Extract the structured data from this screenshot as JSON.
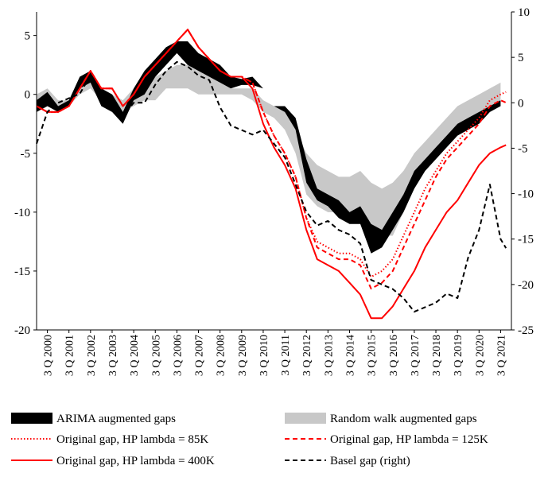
{
  "chart_data": {
    "type": "area",
    "title": "",
    "left_axis": {
      "ylim": [
        -20,
        7
      ],
      "ticks": [
        -20,
        -15,
        -10,
        -5,
        0,
        5
      ],
      "label": ""
    },
    "right_axis": {
      "ylim": [
        -25,
        10
      ],
      "ticks": [
        -25,
        -20,
        -15,
        -10,
        -5,
        0,
        5,
        10
      ],
      "label": ""
    },
    "x_axis": {
      "range": [
        "2000Q1",
        "2021Q4"
      ],
      "tick_labels": [
        "3 Q 2000",
        "3 Q 2001",
        "3 Q 2002",
        "3 Q 2003",
        "3 Q 2004",
        "3 Q 2005",
        "3 Q 2006",
        "3 Q 2007",
        "3 Q 2008",
        "3 Q 2009",
        "3 Q 2010",
        "3 Q 2011",
        "3 Q 2012",
        "3 Q 2013",
        "3 Q 2014",
        "3 Q 2015",
        "3 Q 2016",
        "3 Q 2017",
        "3 Q 2018",
        "3 Q 2019",
        "3 Q 2020",
        "3 Q 2021"
      ],
      "tick_years": [
        2000,
        2001,
        2002,
        2003,
        2004,
        2005,
        2006,
        2007,
        2008,
        2009,
        2010,
        2011,
        2012,
        2013,
        2014,
        2015,
        2016,
        2017,
        2018,
        2019,
        2020,
        2021
      ]
    },
    "legend_position": "bottom",
    "series": [
      {
        "name": "ARIMA augmented gaps",
        "kind": "band",
        "axis": "left",
        "color": "#000000",
        "x": [
          2000.0,
          2000.5,
          2001.0,
          2001.5,
          2002.0,
          2002.5,
          2003.0,
          2003.5,
          2004.0,
          2004.5,
          2005.0,
          2005.5,
          2006.0,
          2006.5,
          2007.0,
          2007.5,
          2008.0,
          2008.5,
          2009.0,
          2009.5,
          2010.0,
          2010.5,
          2011.0,
          2011.5,
          2012.0,
          2012.5,
          2013.0,
          2013.5,
          2014.0,
          2014.5,
          2015.0,
          2015.5,
          2016.0,
          2016.5,
          2017.0,
          2017.5,
          2018.0,
          2018.5,
          2019.0,
          2019.5,
          2020.0,
          2020.5,
          2021.0,
          2021.5
        ],
        "low": [
          -1.5,
          -1.0,
          -1.5,
          -1.0,
          0.5,
          1.0,
          -1.0,
          -1.5,
          -2.5,
          -0.5,
          0.0,
          1.5,
          2.5,
          3.5,
          2.5,
          2.0,
          1.5,
          1.0,
          0.5,
          0.8,
          0.8,
          0.5,
          -1.0,
          -1.5,
          -3.0,
          -7.5,
          -9.0,
          -9.5,
          -10.5,
          -11.0,
          -11.0,
          -13.5,
          -13.0,
          -11.5,
          -10.0,
          -8.0,
          -6.5,
          -5.5,
          -4.5,
          -3.5,
          -3.0,
          -2.5,
          -1.5,
          -1.0
        ],
        "high": [
          -0.5,
          0.2,
          -1.0,
          -0.5,
          1.5,
          2.0,
          0.5,
          0.0,
          -1.5,
          0.5,
          2.0,
          3.0,
          4.0,
          4.5,
          4.5,
          3.5,
          3.0,
          2.5,
          1.5,
          1.3,
          1.5,
          0.5,
          -1.0,
          -1.0,
          -2.0,
          -5.5,
          -8.0,
          -8.5,
          -9.0,
          -10.0,
          -9.5,
          -11.0,
          -11.5,
          -10.0,
          -8.5,
          -6.5,
          -5.5,
          -4.5,
          -3.5,
          -2.5,
          -2.0,
          -1.5,
          -1.0,
          -0.5
        ]
      },
      {
        "name": "Random walk augmented gaps",
        "kind": "band",
        "axis": "left",
        "color": "#c8c8c8",
        "x": [
          2000.0,
          2000.5,
          2001.0,
          2001.5,
          2002.0,
          2002.5,
          2003.0,
          2003.5,
          2004.0,
          2004.5,
          2005.0,
          2005.5,
          2006.0,
          2006.5,
          2007.0,
          2007.5,
          2008.0,
          2008.5,
          2009.0,
          2009.5,
          2010.0,
          2010.5,
          2011.0,
          2011.5,
          2012.0,
          2012.5,
          2013.0,
          2013.5,
          2014.0,
          2014.5,
          2015.0,
          2015.5,
          2016.0,
          2016.5,
          2017.0,
          2017.5,
          2018.0,
          2018.5,
          2019.0,
          2019.5,
          2020.0,
          2020.5,
          2021.0,
          2021.5
        ],
        "low": [
          -1.5,
          -1.0,
          -1.5,
          -1.0,
          0.0,
          0.5,
          -0.5,
          -1.0,
          -1.5,
          -1.0,
          -0.5,
          -0.5,
          0.5,
          0.5,
          0.5,
          0.0,
          0.0,
          0.0,
          0.0,
          0.0,
          -0.5,
          -1.5,
          -2.0,
          -3.0,
          -5.0,
          -8.5,
          -9.5,
          -10.0,
          -10.0,
          -10.0,
          -10.0,
          -11.0,
          -12.0,
          -12.0,
          -10.0,
          -8.0,
          -6.5,
          -5.0,
          -4.0,
          -3.0,
          -2.5,
          -1.5,
          -1.0,
          -0.5
        ],
        "high": [
          0.0,
          0.5,
          -0.5,
          -0.5,
          0.5,
          1.0,
          0.5,
          0.0,
          -0.5,
          0.5,
          1.0,
          1.5,
          2.0,
          2.5,
          2.5,
          2.5,
          2.0,
          1.0,
          0.5,
          0.5,
          0.5,
          -0.5,
          -1.0,
          -1.5,
          -3.0,
          -5.0,
          -6.0,
          -6.5,
          -7.0,
          -7.0,
          -6.5,
          -7.5,
          -8.0,
          -7.5,
          -6.5,
          -5.0,
          -4.0,
          -3.0,
          -2.0,
          -1.0,
          -0.5,
          0.0,
          0.5,
          1.0
        ]
      },
      {
        "name": "Original gap, HP lambda = 85K",
        "kind": "line",
        "axis": "left",
        "color": "#ff0000",
        "dash": "dotted",
        "x": [
          2000.0,
          2000.5,
          2001.0,
          2001.5,
          2002.0,
          2002.5,
          2003.0,
          2003.5,
          2004.0,
          2004.5,
          2005.0,
          2005.5,
          2006.0,
          2006.5,
          2007.0,
          2007.5,
          2008.0,
          2008.5,
          2009.0,
          2009.5,
          2010.0,
          2010.5,
          2011.0,
          2011.5,
          2012.0,
          2012.5,
          2013.0,
          2013.5,
          2014.0,
          2014.5,
          2015.0,
          2015.5,
          2016.0,
          2016.5,
          2017.0,
          2017.5,
          2018.0,
          2018.5,
          2019.0,
          2019.5,
          2020.0,
          2020.5,
          2021.0,
          2021.5,
          2021.75
        ],
        "values": [
          -1.0,
          -1.5,
          -1.5,
          -1.0,
          0.5,
          2.0,
          0.5,
          0.5,
          -1.0,
          0.0,
          1.5,
          2.5,
          3.5,
          4.5,
          5.5,
          4.0,
          3.0,
          2.0,
          1.5,
          1.5,
          1.0,
          -1.5,
          -3.5,
          -5.0,
          -7.0,
          -10.5,
          -12.5,
          -13.0,
          -13.5,
          -13.5,
          -14.0,
          -15.5,
          -15.0,
          -14.0,
          -12.0,
          -10.0,
          -8.0,
          -6.5,
          -5.0,
          -4.0,
          -3.0,
          -2.0,
          -0.5,
          0.0,
          0.2
        ]
      },
      {
        "name": "Original gap, HP lambda = 125K",
        "kind": "line",
        "axis": "left",
        "color": "#ff0000",
        "dash": "dashed",
        "x": [
          2000.0,
          2000.5,
          2001.0,
          2001.5,
          2002.0,
          2002.5,
          2003.0,
          2003.5,
          2004.0,
          2004.5,
          2005.0,
          2005.5,
          2006.0,
          2006.5,
          2007.0,
          2007.5,
          2008.0,
          2008.5,
          2009.0,
          2009.5,
          2010.0,
          2010.5,
          2011.0,
          2011.5,
          2012.0,
          2012.5,
          2013.0,
          2013.5,
          2014.0,
          2014.5,
          2015.0,
          2015.5,
          2016.0,
          2016.5,
          2017.0,
          2017.5,
          2018.0,
          2018.5,
          2019.0,
          2019.5,
          2020.0,
          2020.5,
          2021.0,
          2021.5,
          2021.75
        ],
        "values": [
          -1.0,
          -1.5,
          -1.5,
          -1.0,
          0.5,
          2.0,
          0.5,
          0.5,
          -1.0,
          0.0,
          1.5,
          2.5,
          3.5,
          4.5,
          5.5,
          4.0,
          3.0,
          2.0,
          1.5,
          1.5,
          1.0,
          -1.5,
          -3.5,
          -5.0,
          -7.0,
          -10.5,
          -13.0,
          -13.5,
          -14.0,
          -14.0,
          -14.5,
          -16.5,
          -16.0,
          -15.0,
          -13.0,
          -11.0,
          -9.0,
          -7.0,
          -5.5,
          -4.5,
          -3.5,
          -2.5,
          -1.0,
          -0.5,
          -0.7
        ]
      },
      {
        "name": "Original gap, HP lambda = 400K",
        "kind": "line",
        "axis": "left",
        "color": "#ff0000",
        "dash": "solid",
        "x": [
          2000.0,
          2000.5,
          2001.0,
          2001.5,
          2002.0,
          2002.5,
          2003.0,
          2003.5,
          2004.0,
          2004.5,
          2005.0,
          2005.5,
          2006.0,
          2006.5,
          2007.0,
          2007.5,
          2008.0,
          2008.5,
          2009.0,
          2009.5,
          2010.0,
          2010.5,
          2011.0,
          2011.5,
          2012.0,
          2012.5,
          2013.0,
          2013.5,
          2014.0,
          2014.5,
          2015.0,
          2015.5,
          2016.0,
          2016.5,
          2017.0,
          2017.5,
          2018.0,
          2018.5,
          2019.0,
          2019.5,
          2020.0,
          2020.5,
          2021.0,
          2021.5,
          2021.75
        ],
        "values": [
          -1.0,
          -1.5,
          -1.5,
          -1.0,
          0.5,
          2.0,
          0.5,
          0.5,
          -1.0,
          0.0,
          1.5,
          2.5,
          3.5,
          4.5,
          5.5,
          4.0,
          3.0,
          2.0,
          1.5,
          1.5,
          0.5,
          -2.5,
          -4.5,
          -6.0,
          -8.0,
          -11.5,
          -14.0,
          -14.5,
          -15.0,
          -16.0,
          -17.0,
          -19.0,
          -19.0,
          -18.0,
          -16.5,
          -15.0,
          -13.0,
          -11.5,
          -10.0,
          -9.0,
          -7.5,
          -6.0,
          -5.0,
          -4.5,
          -4.3
        ]
      },
      {
        "name": "Basel gap (right)",
        "kind": "line",
        "axis": "right",
        "color": "#000000",
        "dash": "dashed",
        "x": [
          2000.0,
          2000.5,
          2001.0,
          2001.5,
          2002.0,
          2002.5,
          2003.0,
          2003.5,
          2004.0,
          2004.5,
          2005.0,
          2005.5,
          2006.0,
          2006.5,
          2007.0,
          2007.5,
          2008.0,
          2008.5,
          2009.0,
          2009.5,
          2010.0,
          2010.5,
          2011.0,
          2011.5,
          2012.0,
          2012.5,
          2013.0,
          2013.5,
          2014.0,
          2014.5,
          2015.0,
          2015.5,
          2016.0,
          2016.5,
          2017.0,
          2017.5,
          2018.0,
          2018.5,
          2019.0,
          2019.5,
          2020.0,
          2020.5,
          2021.0,
          2021.5,
          2021.75
        ],
        "values": [
          -4.5,
          -1.0,
          0.0,
          0.5,
          1.0,
          3.0,
          0.5,
          -0.5,
          -1.5,
          0.0,
          0.0,
          2.0,
          3.5,
          4.5,
          4.0,
          3.0,
          2.5,
          -0.5,
          -2.5,
          -3.0,
          -3.5,
          -3.0,
          -4.5,
          -6.0,
          -9.0,
          -12.0,
          -13.5,
          -13.0,
          -14.0,
          -14.5,
          -15.5,
          -19.5,
          -20.0,
          -20.5,
          -21.5,
          -23.0,
          -22.5,
          -22.0,
          -21.0,
          -21.5,
          -17.0,
          -14.0,
          -9.0,
          -15.0,
          -16.0
        ]
      }
    ]
  }
}
